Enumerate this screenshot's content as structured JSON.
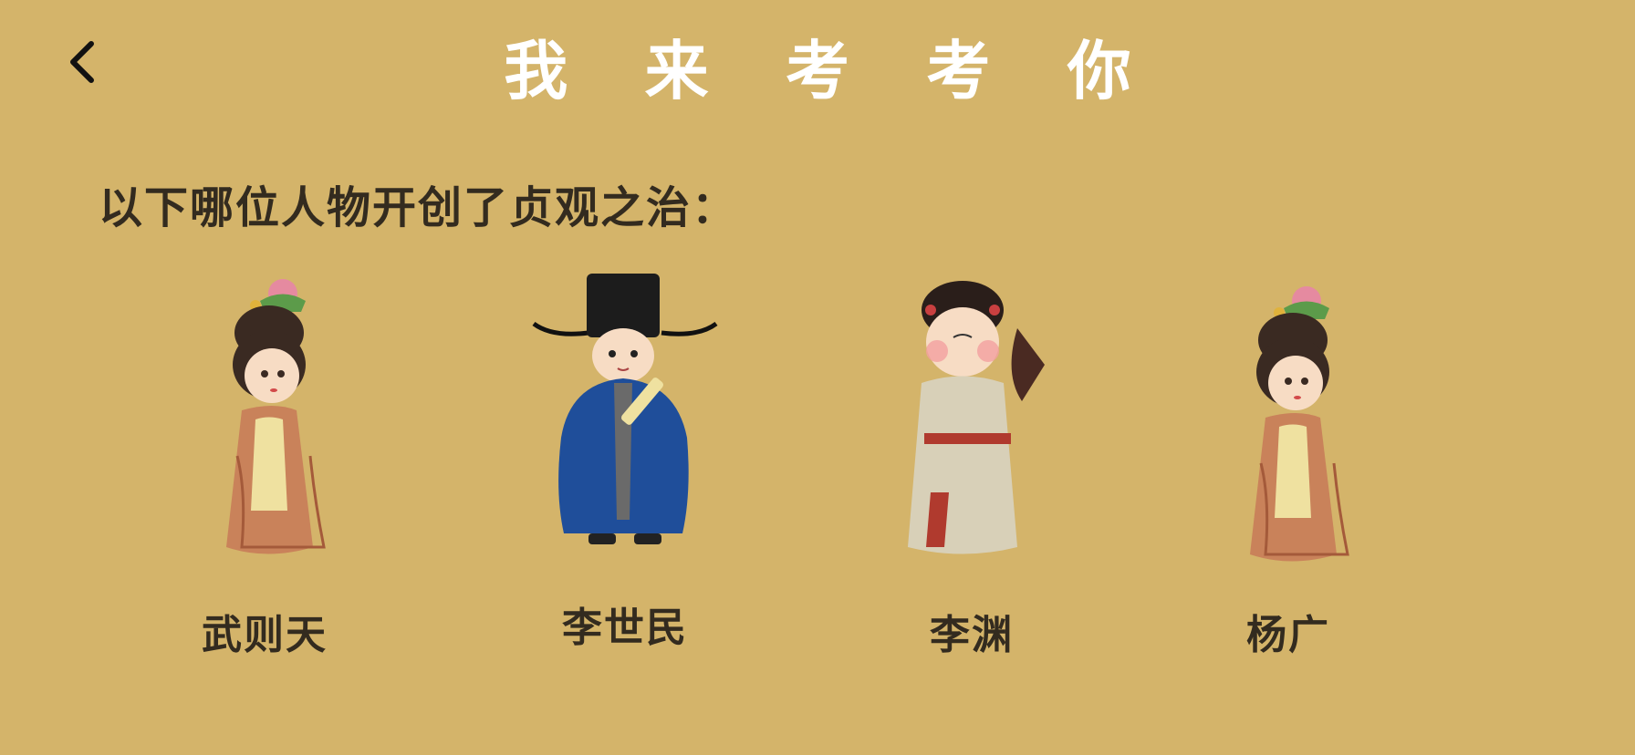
{
  "header": {
    "back_icon": "chevron-left-icon",
    "title": "我 来 考 考 你"
  },
  "question": {
    "text": "以下哪位人物开创了贞观之治："
  },
  "options": [
    {
      "label": "武则天",
      "figure": "tang-lady-figure"
    },
    {
      "label": "李世民",
      "figure": "official-figure"
    },
    {
      "label": "李渊",
      "figure": "fan-lady-figure"
    },
    {
      "label": "杨广",
      "figure": "tang-lady-figure"
    }
  ],
  "colors": {
    "background": "#d4b46a",
    "title": "#ffffff",
    "text": "#332b1f"
  }
}
